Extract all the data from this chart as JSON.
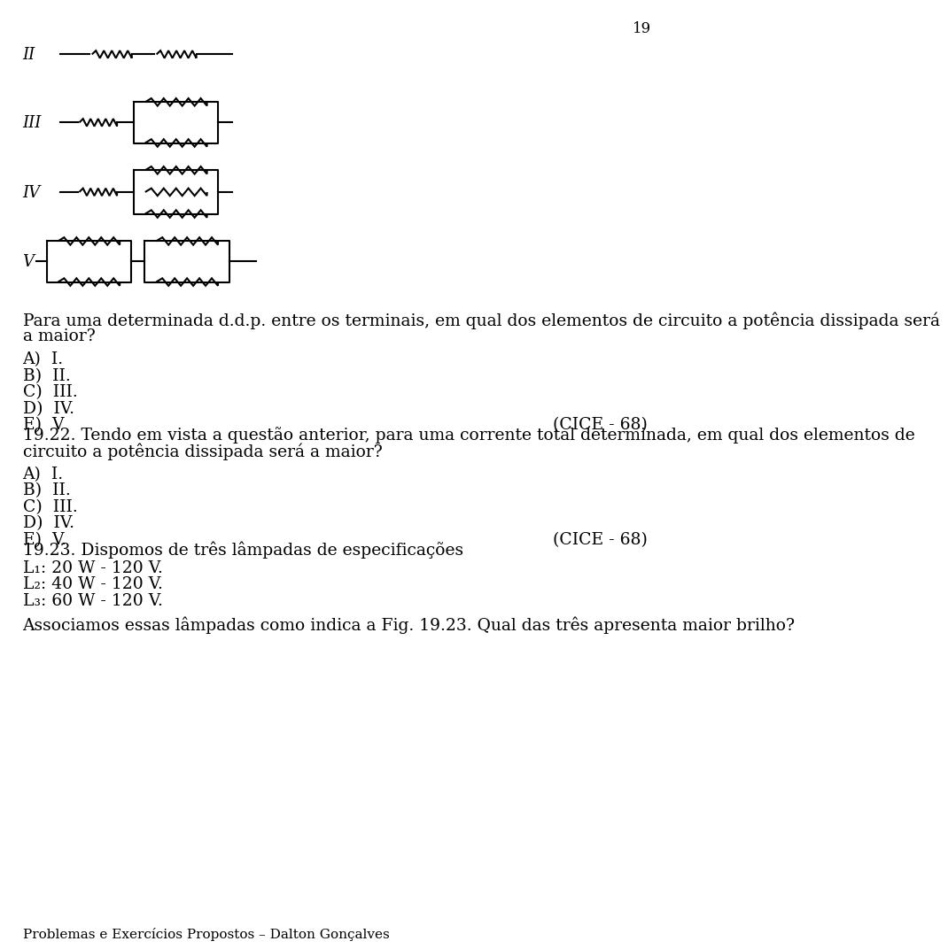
{
  "page_number": "19",
  "bg_color": "#ffffff",
  "text_color": "#000000",
  "font_size_body": 13.5,
  "font_size_small": 11,
  "footer": "Problemas e Exercícios Propostos – Dalton Gonçalves",
  "cice_q21": "(CICE - 68)",
  "cice_q22": "(CICE - 68)",
  "q23_text": "Dispomos de três lâmpadas de especificações",
  "q23_assoc": "Associamos essas lâmpadas como indica a Fig. 19.23. Qual das três apresenta maior brilho?"
}
